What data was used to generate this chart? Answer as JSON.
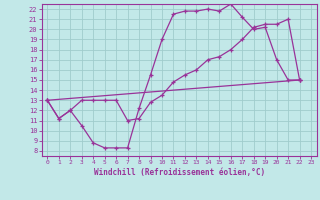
{
  "xlabel": "Windchill (Refroidissement éolien,°C)",
  "bg_color": "#c2e8e8",
  "grid_color": "#a0cccc",
  "line_color": "#993399",
  "spine_color": "#993399",
  "xlim": [
    -0.5,
    23.5
  ],
  "ylim": [
    7.5,
    22.5
  ],
  "xticks": [
    0,
    1,
    2,
    3,
    4,
    5,
    6,
    7,
    8,
    9,
    10,
    11,
    12,
    13,
    14,
    15,
    16,
    17,
    18,
    19,
    20,
    21,
    22,
    23
  ],
  "yticks": [
    8,
    9,
    10,
    11,
    12,
    13,
    14,
    15,
    16,
    17,
    18,
    19,
    20,
    21,
    22
  ],
  "line1_x": [
    0,
    1,
    2,
    3,
    4,
    5,
    6,
    7,
    8,
    9,
    10,
    11,
    12,
    13,
    14,
    15,
    16,
    17,
    18,
    19,
    20,
    21,
    22
  ],
  "line1_y": [
    13,
    11.2,
    12,
    10.5,
    8.8,
    8.3,
    8.3,
    8.3,
    12.2,
    15.5,
    19,
    21.5,
    21.8,
    21.8,
    22,
    21.8,
    22.5,
    21.2,
    20,
    20.2,
    17,
    15,
    15
  ],
  "line2_x": [
    0,
    1,
    2,
    3,
    4,
    5,
    6,
    7,
    8,
    9,
    10,
    11,
    12,
    13,
    14,
    15,
    16,
    17,
    18,
    19,
    20,
    21,
    22
  ],
  "line2_y": [
    13,
    11.2,
    12,
    13,
    13,
    13,
    13,
    11,
    11.2,
    12.8,
    13.5,
    14.8,
    15.5,
    16,
    17,
    17.3,
    18,
    19,
    20.2,
    20.5,
    20.5,
    21,
    15
  ],
  "line3_x": [
    0,
    22
  ],
  "line3_y": [
    13,
    15
  ]
}
